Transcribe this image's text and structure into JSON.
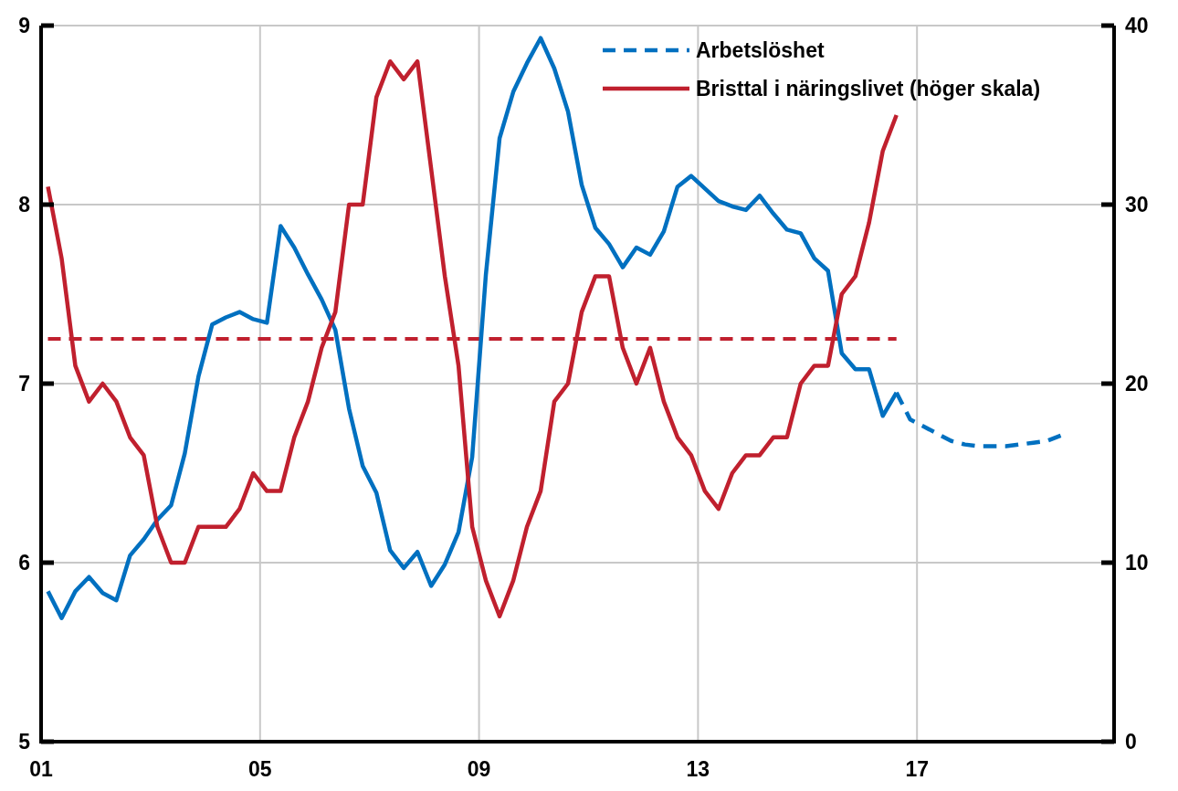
{
  "chart_data": {
    "type": "line",
    "x": [
      2001.125,
      2001.375,
      2001.625,
      2001.875,
      2002.125,
      2002.375,
      2002.625,
      2002.875,
      2003.125,
      2003.375,
      2003.625,
      2003.875,
      2004.125,
      2004.375,
      2004.625,
      2004.875,
      2005.125,
      2005.375,
      2005.625,
      2005.875,
      2006.125,
      2006.375,
      2006.625,
      2006.875,
      2007.125,
      2007.375,
      2007.625,
      2007.875,
      2008.125,
      2008.375,
      2008.625,
      2008.875,
      2009.125,
      2009.375,
      2009.625,
      2009.875,
      2010.125,
      2010.375,
      2010.625,
      2010.875,
      2011.125,
      2011.375,
      2011.625,
      2011.875,
      2012.125,
      2012.375,
      2012.625,
      2012.875,
      2013.125,
      2013.375,
      2013.625,
      2013.875,
      2014.125,
      2014.375,
      2014.625,
      2014.875,
      2015.125,
      2015.375,
      2015.625,
      2015.875,
      2016.125,
      2016.375,
      2016.625
    ],
    "series": [
      {
        "name": "Arbetslöshet",
        "color": "#0070c0",
        "line_style": "dashed",
        "x": [
          2016.625,
          2016.875,
          2017.125,
          2017.375,
          2017.625,
          2017.875,
          2018.125,
          2018.375,
          2018.625,
          2018.875,
          2019.125,
          2019.375,
          2019.625
        ],
        "values": [
          6.95,
          6.8,
          6.76,
          6.72,
          6.68,
          6.66,
          6.65,
          6.65,
          6.65,
          6.66,
          6.67,
          6.68,
          6.71
        ]
      },
      {
        "color": "#0070c0",
        "values": [
          5.84,
          5.69,
          5.84,
          5.92,
          5.83,
          5.79,
          6.04,
          6.13,
          6.24,
          6.32,
          6.61,
          7.04,
          7.33,
          7.37,
          7.4,
          7.36,
          7.34,
          7.88,
          7.76,
          7.61,
          7.47,
          7.3,
          6.86,
          6.54,
          6.39,
          6.07,
          5.97,
          6.06,
          5.87,
          5.99,
          6.17,
          6.59,
          7.61,
          8.37,
          8.63,
          8.79,
          8.93,
          8.76,
          8.52,
          8.11,
          7.87,
          7.78,
          7.65,
          7.76,
          7.72,
          7.85,
          8.1,
          8.16,
          8.09,
          8.02,
          7.99,
          7.97,
          8.05,
          7.95,
          7.86,
          7.84,
          7.7,
          7.63,
          7.17,
          7.08,
          7.08,
          6.82,
          6.95
        ]
      },
      {
        "name": "Bristtal i näringslivet (höger skala)",
        "color": "#c0202e",
        "axis": "y2",
        "values": [
          31,
          27,
          21,
          19,
          20,
          19,
          17,
          16,
          12,
          10,
          10,
          12,
          12,
          12,
          13,
          15,
          14,
          14,
          17,
          19,
          22,
          24,
          30,
          30,
          36,
          38,
          37,
          38,
          32,
          26,
          21,
          12,
          9,
          7,
          9,
          12,
          14,
          19,
          20,
          24,
          26,
          26,
          22,
          20,
          22,
          19,
          17,
          16,
          14,
          13,
          15,
          16,
          16,
          17,
          17,
          20,
          21,
          21,
          25,
          26,
          29,
          33,
          35
        ]
      }
    ],
    "ref_lines": [
      {
        "axis": "y2",
        "value": 22.5,
        "color": "#c0202e",
        "line_style": "dashed"
      }
    ],
    "xlim": [
      2001,
      2020.6
    ],
    "xticks": [
      {
        "value": 2001,
        "label": "01"
      },
      {
        "value": 2005,
        "label": "05"
      },
      {
        "value": 2009,
        "label": "09"
      },
      {
        "value": 2013,
        "label": "13"
      },
      {
        "value": 2017,
        "label": "17"
      }
    ],
    "ylim": [
      5,
      9
    ],
    "yticks": [
      5,
      6,
      7,
      8,
      9
    ],
    "y2lim": [
      0,
      40
    ],
    "y2ticks": [
      0,
      10,
      20,
      30,
      40
    ],
    "grid": true,
    "legend": "top right",
    "line_style": "solid",
    "marker": "none"
  }
}
